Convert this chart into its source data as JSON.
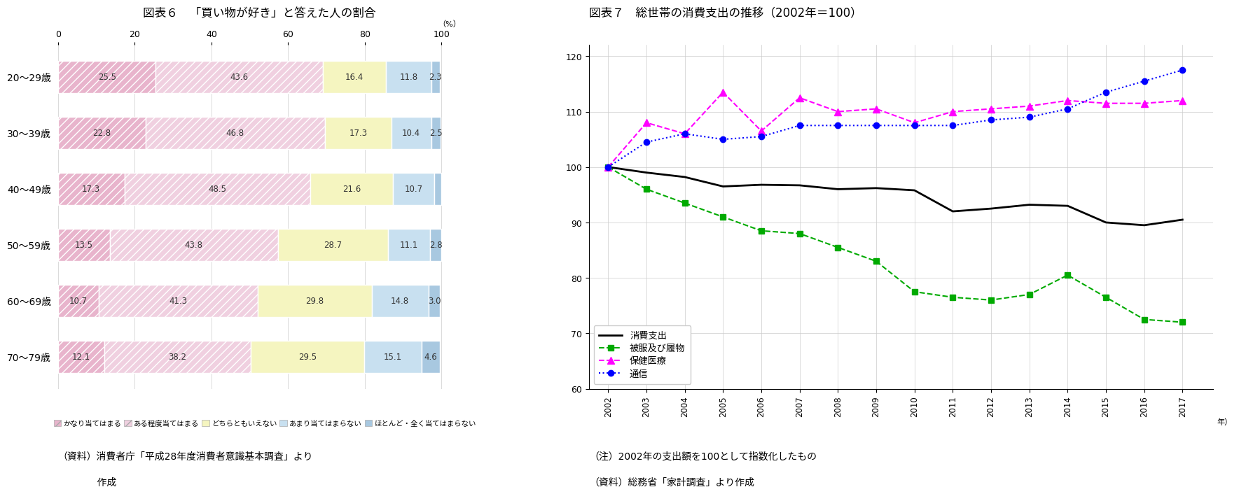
{
  "chart6": {
    "title": "図表６　「買い物が好き」と答えた人の割合",
    "categories": [
      "20〜29歳",
      "30〜39歳",
      "40〜49歳",
      "50〜59歳",
      "60〜69歳",
      "70〜79歳"
    ],
    "segments": [
      {
        "label": "かなり当てはまる",
        "color": "#e8b4cc",
        "hatch": "///",
        "values": [
          25.5,
          22.8,
          17.3,
          13.5,
          10.7,
          12.1
        ]
      },
      {
        "label": "ある程度当てはまる",
        "color": "#f0d0e0",
        "hatch": "///",
        "values": [
          43.6,
          46.8,
          48.5,
          43.8,
          41.3,
          38.2
        ]
      },
      {
        "label": "どちらともいえない",
        "color": "#f5f5c0",
        "hatch": "",
        "values": [
          16.4,
          17.3,
          21.6,
          28.7,
          29.8,
          29.5
        ]
      },
      {
        "label": "あまり当てはまらない",
        "color": "#c8e0f0",
        "hatch": "",
        "values": [
          11.8,
          10.4,
          10.7,
          11.1,
          14.8,
          15.1
        ]
      },
      {
        "label": "ほとんど・全く当てはまらない",
        "color": "#a8c8e0",
        "hatch": "",
        "values": [
          2.3,
          2.5,
          1.8,
          2.8,
          3.0,
          4.6
        ]
      }
    ],
    "xlim": [
      0,
      105
    ],
    "xticks": [
      0,
      20,
      40,
      60,
      80,
      100
    ],
    "note1": "（資料）消費者庁「平成28年度消費者意識基本調査」より",
    "note2": "　　　　作成"
  },
  "chart7": {
    "title": "図表７　総世帯の消費支出の推移（2002年＝100）",
    "years": [
      2002,
      2003,
      2004,
      2005,
      2006,
      2007,
      2008,
      2009,
      2010,
      2011,
      2012,
      2013,
      2014,
      2015,
      2016,
      2017
    ],
    "series": [
      {
        "label": "消費支出",
        "color": "#000000",
        "linestyle": "-",
        "marker": null,
        "markersize": 0,
        "linewidth": 2.0,
        "values": [
          100,
          99.0,
          98.2,
          96.5,
          96.8,
          96.7,
          96.0,
          96.2,
          95.8,
          92.0,
          92.5,
          93.2,
          93.0,
          90.0,
          89.5,
          90.5
        ]
      },
      {
        "label": "被服及び履物",
        "color": "#00aa00",
        "linestyle": "--",
        "marker": "s",
        "markersize": 6,
        "linewidth": 1.5,
        "values": [
          100,
          96.0,
          93.5,
          91.0,
          88.5,
          88.0,
          85.5,
          83.0,
          77.5,
          76.5,
          76.0,
          77.0,
          80.5,
          76.5,
          72.5,
          72.0
        ]
      },
      {
        "label": "保健医療",
        "color": "#ff00ff",
        "linestyle": "--",
        "marker": "^",
        "markersize": 7,
        "linewidth": 1.5,
        "values": [
          100,
          108.0,
          106.0,
          113.5,
          106.5,
          112.5,
          110.0,
          110.5,
          108.0,
          110.0,
          110.5,
          111.0,
          112.0,
          111.5,
          111.5,
          112.0
        ]
      },
      {
        "label": "通信",
        "color": "#0000ff",
        "linestyle": ":",
        "marker": "o",
        "markersize": 6,
        "linewidth": 1.5,
        "values": [
          100,
          104.5,
          106.0,
          105.0,
          105.5,
          107.5,
          107.5,
          107.5,
          107.5,
          107.5,
          108.5,
          109.0,
          110.5,
          113.5,
          115.5,
          117.5
        ]
      }
    ],
    "ylim": [
      60,
      122
    ],
    "yticks": [
      60,
      70,
      80,
      90,
      100,
      110,
      120
    ],
    "note1": "（注）2002年の支出額を100として指数化したもの",
    "note2": "（資料）総務省「家計調査」より作成"
  },
  "bg_color": "#ffffff"
}
